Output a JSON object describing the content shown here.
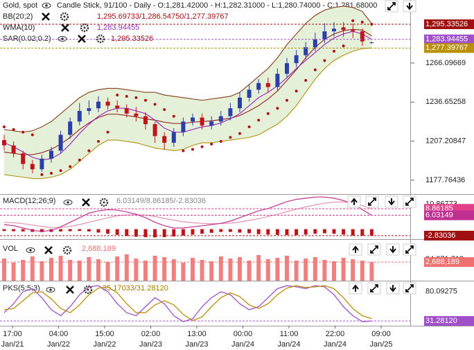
{
  "chart_data": [
    {
      "type": "candlestick",
      "title": "Gold, spot",
      "subtitle": "Candle Stick, 91/100 - Daily - O:1,281.42000 - H:1,282.31000 - L:1,280.74000 - C:1,281.68000",
      "up_color": "#2b3fa8",
      "down_color": "#c0141b",
      "open": [
        1208,
        1204,
        1198,
        1190,
        1186,
        1194,
        1200,
        1212,
        1222,
        1230,
        1232,
        1237,
        1234,
        1232,
        1228,
        1226,
        1220,
        1211,
        1206,
        1214,
        1222,
        1225,
        1219,
        1222,
        1226,
        1232,
        1240,
        1246,
        1251,
        1248,
        1258,
        1266,
        1272,
        1278,
        1284,
        1290,
        1293,
        1291,
        1290,
        1281.42
      ],
      "high": [
        1212,
        1207,
        1200,
        1193,
        1197,
        1203,
        1215,
        1225,
        1236,
        1238,
        1241,
        1240,
        1238,
        1235,
        1233,
        1229,
        1222,
        1214,
        1217,
        1225,
        1228,
        1228,
        1226,
        1230,
        1236,
        1244,
        1250,
        1254,
        1255,
        1262,
        1270,
        1276,
        1282,
        1289,
        1296,
        1297,
        1297,
        1296,
        1292,
        1282.31
      ],
      "low": [
        1200,
        1195,
        1186,
        1183,
        1184,
        1191,
        1198,
        1209,
        1219,
        1227,
        1229,
        1231,
        1229,
        1225,
        1222,
        1216,
        1206,
        1201,
        1203,
        1211,
        1219,
        1216,
        1216,
        1219,
        1223,
        1229,
        1237,
        1243,
        1244,
        1245,
        1255,
        1263,
        1269,
        1275,
        1281,
        1286,
        1286,
        1285,
        1279,
        1280.74
      ],
      "close": [
        1204,
        1198,
        1190,
        1186,
        1194,
        1200,
        1212,
        1222,
        1230,
        1232,
        1237,
        1234,
        1232,
        1228,
        1226,
        1220,
        1211,
        1206,
        1214,
        1222,
        1225,
        1219,
        1222,
        1226,
        1232,
        1240,
        1246,
        1251,
        1248,
        1258,
        1266,
        1272,
        1278,
        1284,
        1290,
        1292,
        1291,
        1290,
        1282.4,
        1281.68
      ],
      "bb": {
        "name": "BB(20;2)",
        "readout": "1,295.69733/1,286.54750/1,277.39767",
        "color": "#9a2a2a",
        "upper_color": "#8b4a2a",
        "lower_color": "#b89a20",
        "fill": "#e5f0d9",
        "upper": [
          1216,
          1215,
          1214,
          1215,
          1218,
          1222,
          1228,
          1234,
          1240,
          1244,
          1246,
          1247,
          1247,
          1246,
          1245,
          1244,
          1244,
          1242,
          1241,
          1240,
          1239,
          1238,
          1239,
          1240,
          1241,
          1244,
          1250,
          1256,
          1262,
          1270,
          1280,
          1288,
          1296,
          1302,
          1306,
          1308,
          1309,
          1308,
          1305,
          1295.7
        ],
        "middle": [
          1199,
          1198,
          1197,
          1197,
          1198.5,
          1201,
          1205,
          1210,
          1216,
          1221,
          1225,
          1227.5,
          1227.5,
          1226.5,
          1225.5,
          1224,
          1223,
          1221.5,
          1220.5,
          1220.5,
          1221.5,
          1222,
          1222.5,
          1223.5,
          1224.5,
          1226.5,
          1230,
          1234,
          1239,
          1245,
          1253,
          1261,
          1270,
          1278,
          1284,
          1288,
          1290.5,
          1291.5,
          1291,
          1286.5
        ],
        "lower": [
          1182,
          1181,
          1180,
          1179,
          1179,
          1180,
          1182,
          1186,
          1192,
          1198,
          1204,
          1208,
          1208,
          1207,
          1206,
          1204,
          1202,
          1201,
          1200,
          1201,
          1204,
          1206,
          1206,
          1207,
          1208,
          1209,
          1210,
          1212,
          1216,
          1220,
          1226,
          1234,
          1244,
          1254,
          1262,
          1268,
          1272,
          1275,
          1277,
          1277.4
        ]
      },
      "wma": {
        "name": "WMA(10)",
        "readout": "1,283.94455",
        "color": "#9b30c0",
        "values": [
          1206,
          1203,
          1199,
          1195,
          1193,
          1194,
          1198,
          1205,
          1213,
          1220,
          1226,
          1230,
          1232,
          1232,
          1230,
          1228,
          1223,
          1217,
          1214,
          1214,
          1216,
          1218,
          1219,
          1221,
          1224,
          1228,
          1234,
          1240,
          1244,
          1249,
          1255,
          1262,
          1268,
          1274,
          1280,
          1285,
          1288,
          1290,
          1288,
          1283.9
        ]
      },
      "sar": {
        "name": "SAR(0.02;0.2)",
        "readout": "1,295.33526",
        "color": "#b01010",
        "values": [
          1218,
          1216,
          1214,
          1212,
          1182,
          1183,
          1185,
          1188,
          1193,
          1200,
          1207,
          1214,
          1242,
          1241,
          1240,
          1238,
          1235,
          1231,
          1226,
          1200,
          1201,
          1203,
          1205,
          1207,
          1210,
          1213,
          1218,
          1223,
          1228,
          1232,
          1238,
          1245,
          1253,
          1261,
          1268,
          1275,
          1279,
          1298,
          1297,
          1295.34
        ]
      },
      "ylim": [
        1167.31,
        1313.63
      ],
      "yticks": [
        1177.76436,
        1207.20847,
        1236.65258,
        1266.09669
      ],
      "markers": [
        {
          "value": 1295.33526,
          "label": "1,295.33526",
          "color": "#a01010"
        },
        {
          "value": 1283.94455,
          "label": "1,283.94455",
          "color": "#a050c8"
        },
        {
          "value": 1277.39767,
          "label": "1,277.39767",
          "color": "#b8900a"
        }
      ]
    },
    {
      "type": "macd",
      "name": "MACD(12;26;9)",
      "readout": "6.03149/8.86185/-2.83036",
      "macd_color": "#c03090",
      "signal_color": "#e890b0",
      "hist_color": "#c0141b",
      "macd": [
        2,
        1.5,
        0.5,
        -0.5,
        -1,
        -0.5,
        1,
        3,
        5,
        7,
        8,
        8.5,
        8.3,
        7.5,
        6.5,
        5,
        3,
        1.5,
        0.5,
        0.5,
        1,
        1.5,
        2,
        2.5,
        3.5,
        5,
        6.5,
        8,
        9,
        10.5,
        12,
        13,
        13.5,
        14,
        14,
        13.5,
        12.5,
        11,
        8.5,
        6.03149
      ],
      "signal": [
        3,
        2.8,
        2.4,
        1.8,
        1.2,
        0.7,
        0.7,
        1.2,
        2,
        3,
        4,
        5,
        5.8,
        6.2,
        6.3,
        6.1,
        5.5,
        4.7,
        3.9,
        3.2,
        2.8,
        2.5,
        2.4,
        2.4,
        2.6,
        3.1,
        3.8,
        4.6,
        5.5,
        6.5,
        7.6,
        8.7,
        9.7,
        10.6,
        11.3,
        11.8,
        11.9,
        11.4,
        10.3,
        8.86185
      ],
      "hist": [
        -0.8,
        -0.9,
        -1,
        -1.2,
        -1.3,
        -1.2,
        -1,
        -0.9,
        -0.8,
        -1,
        -1.5,
        -2,
        -2.5,
        -3,
        -3.3,
        -3.5,
        -3.6,
        -3.5,
        -3.2,
        -2.8,
        -2.4,
        -2,
        -1.6,
        -1.2,
        -1.2,
        -1.5,
        -1.8,
        -2.2,
        -2.4,
        -2.5,
        -2.6,
        -2.6,
        -2.4,
        -2,
        -1.8,
        -2,
        -2.4,
        -2.8,
        -2.9,
        -2.83036
      ],
      "ylim": [
        -4.35,
        14.7
      ],
      "yticks": [
        10.86773
      ],
      "markers": [
        {
          "value": 8.86185,
          "color": "#e0408a"
        },
        {
          "value": 6.03149,
          "color": "#c03090"
        },
        {
          "value": -2.83036,
          "color": "#a01010"
        }
      ]
    },
    {
      "type": "bar",
      "name": "VOL",
      "readout": "2,688,189",
      "color": "#f08080",
      "scale_note": "84,271,718",
      "values": [
        3200000,
        2600000,
        3000000,
        3500000,
        2800000,
        3300000,
        3600000,
        3000000,
        2900000,
        3400000,
        3100000,
        2700000,
        3500000,
        3800000,
        3200000,
        2900000,
        3600000,
        3400000,
        3100000,
        2600000,
        3300000,
        3000000,
        2800000,
        3500000,
        3200000,
        3400000,
        2900000,
        3700000,
        3100000,
        3300000,
        3600000,
        2900000,
        3200000,
        3400000,
        3000000,
        2800000,
        3300000,
        3100000,
        2900000,
        2688189
      ],
      "ylim": [
        0,
        5800000
      ],
      "markers": [
        {
          "value": 2688189,
          "label": "2,688,189",
          "color": "#f07070"
        }
      ]
    },
    {
      "type": "line",
      "name": "PKS(5;5;3)",
      "readout": "35.17033/31.28120",
      "series": [
        {
          "color": "#a050c8",
          "values": [
            45,
            60,
            80,
            85,
            70,
            50,
            40,
            55,
            75,
            88,
            90,
            80,
            60,
            45,
            40,
            55,
            70,
            60,
            40,
            30,
            35,
            55,
            70,
            80,
            75,
            60,
            50,
            55,
            70,
            85,
            90,
            88,
            85,
            90,
            88,
            75,
            55,
            40,
            30,
            31.2812
          ]
        },
        {
          "color": "#b8900a",
          "values": [
            50,
            52,
            65,
            78,
            80,
            68,
            52,
            45,
            58,
            75,
            86,
            88,
            78,
            60,
            45,
            45,
            58,
            65,
            58,
            42,
            32,
            38,
            55,
            70,
            78,
            72,
            58,
            52,
            60,
            75,
            86,
            90,
            87,
            88,
            90,
            85,
            70,
            52,
            40,
            35.17033
          ]
        }
      ],
      "ylim": [
        23.3,
        96.0
      ],
      "yticks": [
        80.09275
      ],
      "markers": [
        {
          "value": 31.2812,
          "label": "31.28120",
          "color": "#a050c8"
        }
      ],
      "x_labels": [
        [
          "17:00",
          "Jan/21"
        ],
        [
          "04:00",
          "Jan/22"
        ],
        [
          "15:00",
          "Jan/22"
        ],
        [
          "02:00",
          "Jan/23"
        ],
        [
          "13:00",
          "Jan/23"
        ],
        [
          "00:00",
          "Jan/24"
        ],
        [
          "11:00",
          "Jan/24"
        ],
        [
          "22:00",
          "Jan/24"
        ],
        [
          "09:00",
          "Jan/25"
        ]
      ]
    }
  ]
}
